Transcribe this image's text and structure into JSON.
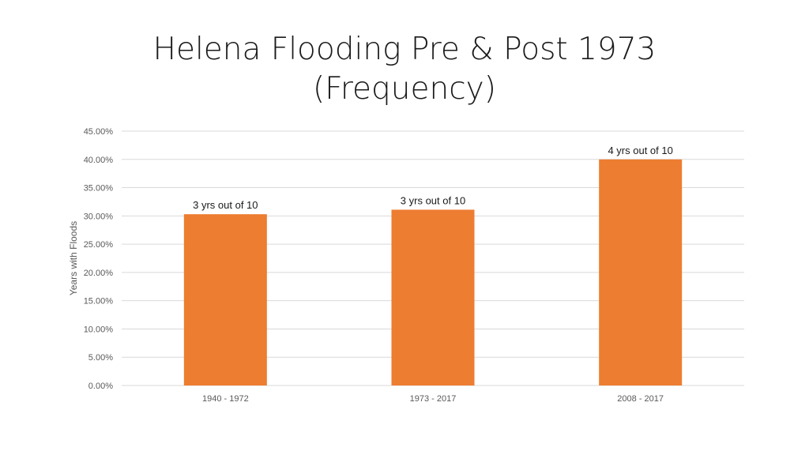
{
  "slide": {
    "title_line1": "Helena Flooding Pre & Post 1973",
    "title_line2": "(Frequency)"
  },
  "chart_data": {
    "type": "bar",
    "title": "",
    "xlabel": "",
    "ylabel": "Years with Floods",
    "categories": [
      "1940 - 1972",
      "1973 - 2017",
      "2008 - 2017"
    ],
    "values": [
      0.303,
      0.311,
      0.4
    ],
    "data_labels": [
      "3 yrs out of 10",
      "3 yrs out of 10",
      "4 yrs out of 10"
    ],
    "ylim": [
      0,
      0.45
    ],
    "yticks": [
      0,
      0.05,
      0.1,
      0.15,
      0.2,
      0.25,
      0.3,
      0.35,
      0.4,
      0.45
    ],
    "ytick_labels": [
      "0.00%",
      "5.00%",
      "10.00%",
      "15.00%",
      "20.00%",
      "25.00%",
      "30.00%",
      "35.00%",
      "40.00%",
      "45.00%"
    ],
    "grid": true,
    "legend": "none",
    "colors": {
      "bar": "#ED7D31",
      "grid": "#D9D9D9",
      "axis_text": "#595959"
    }
  }
}
